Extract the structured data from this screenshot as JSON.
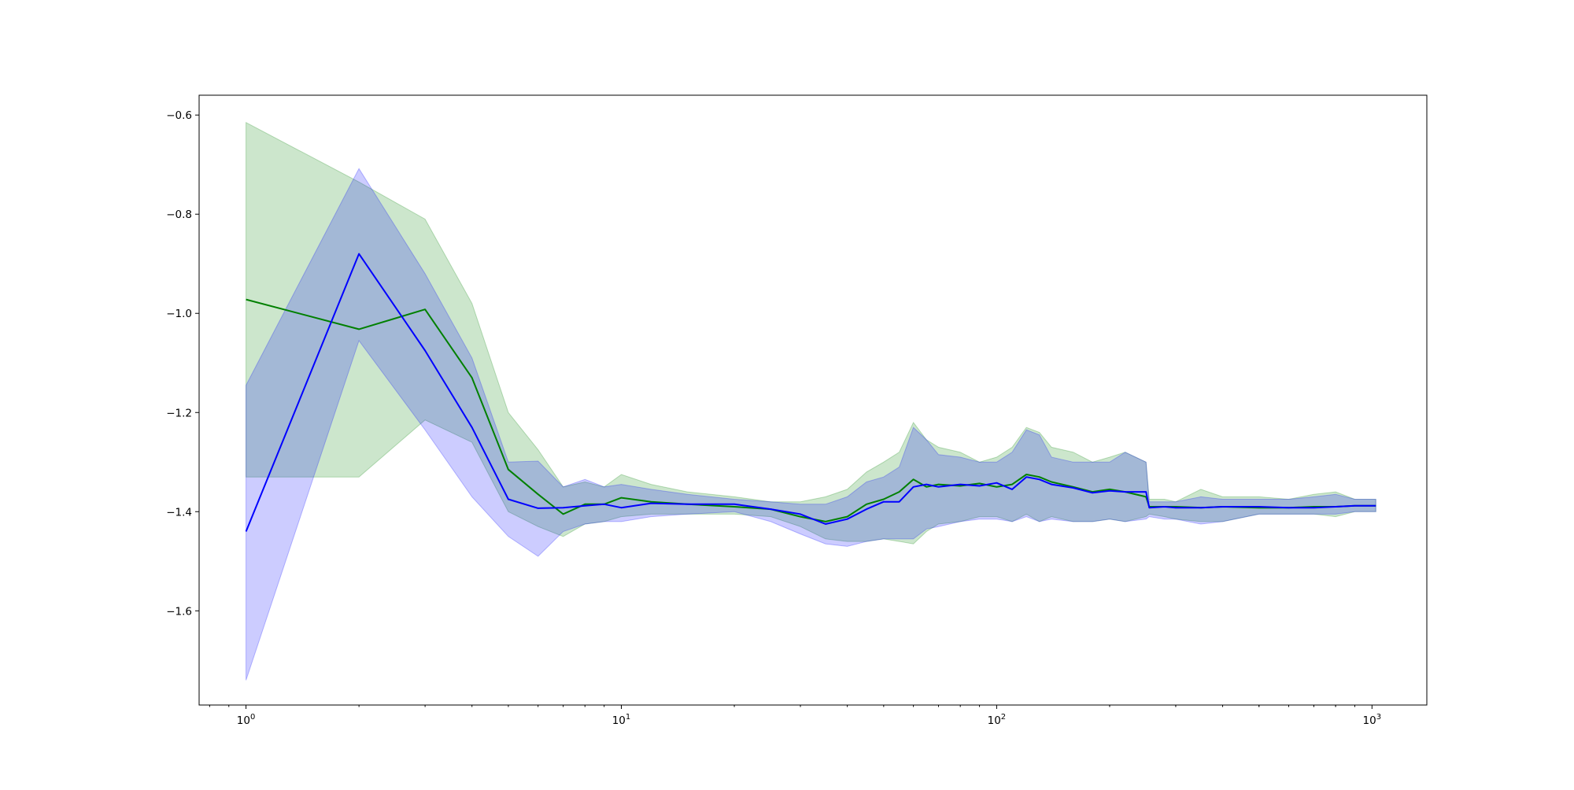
{
  "chart_data": {
    "type": "line",
    "title": "",
    "xlabel": "",
    "ylabel": "",
    "xscale": "log",
    "xlim": [
      0.75,
      1400
    ],
    "ylim": [
      -1.79,
      -0.56
    ],
    "grid": false,
    "legend": "none",
    "x_ticks": [
      {
        "value": 1,
        "base": "10",
        "exp": "0"
      },
      {
        "value": 10,
        "base": "10",
        "exp": "1"
      },
      {
        "value": 100,
        "base": "10",
        "exp": "2"
      },
      {
        "value": 1000,
        "base": "10",
        "exp": "3"
      }
    ],
    "y_ticks": [
      {
        "value": -0.6,
        "label": "−0.6"
      },
      {
        "value": -0.8,
        "label": "−0.8"
      },
      {
        "value": -1.0,
        "label": "−1.0"
      },
      {
        "value": -1.2,
        "label": "−1.2"
      },
      {
        "value": -1.4,
        "label": "−1.4"
      },
      {
        "value": -1.6,
        "label": "−1.6"
      }
    ],
    "series": [
      {
        "color": "#008000",
        "band_color": "#008000",
        "band_opacity": 0.2,
        "x": [
          1,
          2,
          3,
          4,
          5,
          6,
          7,
          8,
          9,
          10,
          12,
          15,
          20,
          25,
          30,
          35,
          40,
          45,
          50,
          55,
          60,
          65,
          70,
          80,
          90,
          100,
          110,
          120,
          130,
          140,
          160,
          180,
          200,
          220,
          250,
          255,
          280,
          300,
          350,
          400,
          500,
          600,
          700,
          800,
          900,
          1000,
          1024
        ],
        "mean": [
          -0.972,
          -1.032,
          -0.992,
          -1.13,
          -1.315,
          -1.365,
          -1.405,
          -1.385,
          -1.385,
          -1.372,
          -1.38,
          -1.385,
          -1.39,
          -1.395,
          -1.41,
          -1.42,
          -1.41,
          -1.385,
          -1.375,
          -1.36,
          -1.335,
          -1.35,
          -1.345,
          -1.348,
          -1.343,
          -1.35,
          -1.345,
          -1.325,
          -1.33,
          -1.34,
          -1.35,
          -1.36,
          -1.355,
          -1.36,
          -1.37,
          -1.39,
          -1.39,
          -1.39,
          -1.392,
          -1.39,
          -1.392,
          -1.392,
          -1.39,
          -1.39,
          -1.388,
          -1.388,
          -1.388
        ],
        "upper": [
          -0.615,
          -0.735,
          -0.81,
          -0.98,
          -1.2,
          -1.275,
          -1.35,
          -1.34,
          -1.35,
          -1.325,
          -1.345,
          -1.36,
          -1.37,
          -1.38,
          -1.38,
          -1.37,
          -1.355,
          -1.32,
          -1.3,
          -1.28,
          -1.22,
          -1.255,
          -1.27,
          -1.28,
          -1.3,
          -1.29,
          -1.27,
          -1.23,
          -1.24,
          -1.27,
          -1.28,
          -1.3,
          -1.29,
          -1.28,
          -1.3,
          -1.375,
          -1.375,
          -1.38,
          -1.355,
          -1.37,
          -1.37,
          -1.375,
          -1.365,
          -1.36,
          -1.375,
          -1.375,
          -1.375
        ],
        "lower": [
          -1.33,
          -1.33,
          -1.215,
          -1.26,
          -1.4,
          -1.43,
          -1.45,
          -1.425,
          -1.42,
          -1.41,
          -1.405,
          -1.405,
          -1.405,
          -1.41,
          -1.43,
          -1.455,
          -1.46,
          -1.46,
          -1.455,
          -1.46,
          -1.465,
          -1.44,
          -1.425,
          -1.42,
          -1.41,
          -1.41,
          -1.42,
          -1.405,
          -1.42,
          -1.41,
          -1.42,
          -1.42,
          -1.415,
          -1.42,
          -1.41,
          -1.405,
          -1.41,
          -1.415,
          -1.42,
          -1.42,
          -1.405,
          -1.405,
          -1.405,
          -1.41,
          -1.4,
          -1.4,
          -1.4
        ]
      },
      {
        "color": "#0000ff",
        "band_color": "#0000ff",
        "band_opacity": 0.2,
        "x": [
          1,
          2,
          3,
          4,
          5,
          6,
          7,
          8,
          9,
          10,
          12,
          15,
          20,
          25,
          30,
          35,
          40,
          45,
          50,
          55,
          60,
          65,
          70,
          80,
          90,
          100,
          110,
          120,
          130,
          140,
          160,
          180,
          200,
          220,
          250,
          255,
          280,
          300,
          350,
          400,
          500,
          600,
          700,
          800,
          900,
          1000,
          1024
        ],
        "mean": [
          -1.44,
          -0.88,
          -1.075,
          -1.23,
          -1.375,
          -1.393,
          -1.392,
          -1.388,
          -1.385,
          -1.392,
          -1.383,
          -1.385,
          -1.385,
          -1.395,
          -1.405,
          -1.425,
          -1.415,
          -1.395,
          -1.38,
          -1.38,
          -1.35,
          -1.345,
          -1.35,
          -1.345,
          -1.348,
          -1.342,
          -1.355,
          -1.33,
          -1.335,
          -1.345,
          -1.352,
          -1.362,
          -1.358,
          -1.36,
          -1.36,
          -1.392,
          -1.39,
          -1.392,
          -1.392,
          -1.39,
          -1.39,
          -1.392,
          -1.392,
          -1.39,
          -1.388,
          -1.388,
          -1.388
        ],
        "upper": [
          -1.145,
          -0.708,
          -0.92,
          -1.09,
          -1.3,
          -1.298,
          -1.35,
          -1.335,
          -1.35,
          -1.345,
          -1.355,
          -1.365,
          -1.375,
          -1.38,
          -1.385,
          -1.385,
          -1.37,
          -1.34,
          -1.33,
          -1.31,
          -1.23,
          -1.255,
          -1.285,
          -1.29,
          -1.3,
          -1.3,
          -1.28,
          -1.235,
          -1.245,
          -1.29,
          -1.3,
          -1.3,
          -1.3,
          -1.28,
          -1.3,
          -1.38,
          -1.38,
          -1.38,
          -1.37,
          -1.375,
          -1.375,
          -1.375,
          -1.37,
          -1.365,
          -1.375,
          -1.375,
          -1.375
        ],
        "lower": [
          -1.74,
          -1.055,
          -1.235,
          -1.37,
          -1.45,
          -1.49,
          -1.44,
          -1.425,
          -1.42,
          -1.42,
          -1.41,
          -1.405,
          -1.4,
          -1.42,
          -1.445,
          -1.465,
          -1.47,
          -1.46,
          -1.455,
          -1.455,
          -1.455,
          -1.435,
          -1.43,
          -1.42,
          -1.415,
          -1.415,
          -1.42,
          -1.41,
          -1.42,
          -1.415,
          -1.42,
          -1.42,
          -1.415,
          -1.42,
          -1.415,
          -1.41,
          -1.415,
          -1.415,
          -1.425,
          -1.42,
          -1.405,
          -1.405,
          -1.405,
          -1.405,
          -1.4,
          -1.4,
          -1.4
        ]
      }
    ]
  }
}
